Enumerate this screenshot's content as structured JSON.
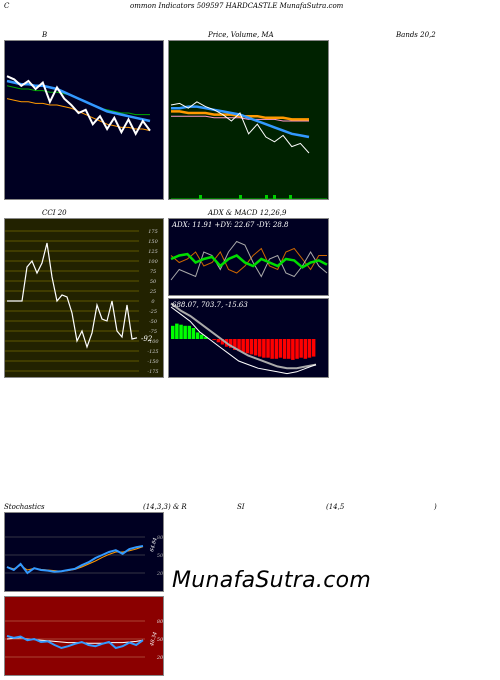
{
  "header": {
    "left": "C",
    "center": "ommon  Indicators 509597 HARDCASTLE MunafaSutra.com"
  },
  "titles": {
    "b": "B",
    "price": "Price,  Volume,  MA",
    "bands": "Bands 20,2",
    "cci": "CCI 20",
    "adx": "ADX  & MACD 12,26,9",
    "stoch_a": "Stochastics",
    "stoch_b": "(14,3,3) & R",
    "rsi_a": "SI",
    "rsi_b": "(14,5",
    "rsi_c": ")"
  },
  "adx": {
    "text": "ADX: 11.91  +DY: 22.67 -DY: 28.8"
  },
  "macd": {
    "text": "688.07,  703.7,  -15.63"
  },
  "cci": {
    "value_label": "-92",
    "ticks": [
      "175",
      "150",
      "125",
      "100",
      "75",
      "50",
      "25",
      "0",
      "-25",
      "-50",
      "-75",
      "-100",
      "-125",
      "-150",
      "-175"
    ]
  },
  "stoch": {
    "ticks": [
      "80",
      "50",
      "20"
    ],
    "value_label": "64.84"
  },
  "rsi": {
    "ticks": [
      "80",
      "50",
      "20"
    ],
    "value_label": "48.34"
  },
  "watermark": "MunafaSutra.com",
  "colors": {
    "panel_dark": "#000022",
    "panel_green": "#002200",
    "panel_cci": "#222200",
    "panel_rsi": "#8b0000",
    "blue": "#3399ff",
    "orange": "#ff9900",
    "green_line": "#00cc00",
    "macd_pos": "#00ff00",
    "macd_neg": "#ff0000"
  },
  "chart_data": [
    {
      "type": "line",
      "name": "bollinger",
      "series": [
        {
          "values": [
            72,
            71,
            70,
            70,
            69,
            69,
            68,
            68,
            67,
            66,
            64,
            62,
            60,
            58,
            57,
            56,
            55,
            55,
            54,
            54,
            54
          ]
        },
        {
          "values": [
            78,
            76,
            72,
            75,
            70,
            74,
            62,
            71,
            64,
            60,
            55,
            57,
            48,
            53,
            45,
            52,
            43,
            51,
            42,
            50,
            44
          ]
        },
        {
          "values": [
            75,
            74,
            73,
            73,
            72,
            72,
            71,
            70,
            68,
            66,
            64,
            62,
            60,
            58,
            56,
            55,
            54,
            53,
            52,
            51,
            50
          ]
        },
        {
          "values": [
            64,
            63,
            62,
            62,
            61,
            61,
            60,
            60,
            59,
            58,
            56,
            54,
            52,
            50,
            48,
            47,
            46,
            46,
            45,
            45,
            44
          ]
        }
      ]
    },
    {
      "type": "line",
      "name": "price",
      "series": [
        {
          "values": [
            60,
            61,
            58,
            62,
            59,
            57,
            54,
            50,
            55,
            42,
            48,
            40,
            37,
            41,
            34,
            36,
            30
          ]
        },
        {
          "values": [
            58,
            58,
            59,
            59,
            58,
            57,
            56,
            55,
            54,
            52,
            50,
            48,
            46,
            44,
            42,
            41,
            40
          ]
        },
        {
          "values": [
            56,
            56,
            55,
            55,
            55,
            54,
            54,
            54,
            53,
            53,
            53,
            52,
            52,
            52,
            51,
            51,
            51
          ]
        },
        {
          "values": [
            53,
            53,
            53,
            53,
            53,
            52,
            52,
            52,
            52,
            51,
            51,
            51,
            51,
            50,
            50,
            50,
            50
          ]
        }
      ]
    },
    {
      "type": "line",
      "name": "cci",
      "values": [
        0,
        0,
        0,
        0,
        85,
        100,
        70,
        95,
        145,
        60,
        0,
        15,
        10,
        -30,
        -100,
        -75,
        -115,
        -80,
        -10,
        -45,
        -50,
        0,
        -75,
        -90,
        -10,
        -95,
        -92
      ],
      "ylim": [
        -175,
        175
      ]
    },
    {
      "type": "line",
      "name": "adx",
      "series": [
        {
          "values": [
            50,
            55,
            57,
            45,
            50,
            53,
            40,
            50,
            55,
            45,
            40,
            50,
            45,
            40,
            50,
            48,
            38,
            45,
            48,
            42
          ]
        },
        {
          "values": [
            20,
            35,
            30,
            25,
            60,
            55,
            35,
            60,
            75,
            70,
            45,
            25,
            50,
            55,
            30,
            25,
            40,
            60,
            40,
            30
          ]
        },
        {
          "values": [
            55,
            45,
            50,
            60,
            40,
            45,
            60,
            35,
            30,
            40,
            55,
            65,
            40,
            35,
            60,
            65,
            50,
            35,
            55,
            55
          ]
        }
      ]
    },
    {
      "type": "bar",
      "name": "macd",
      "values": [
        12,
        14,
        13,
        12,
        12,
        10,
        6,
        4,
        2,
        0,
        -1,
        -3,
        -5,
        -7,
        -8,
        -10,
        -11,
        -12,
        -13,
        -14,
        -15,
        -16,
        -17,
        -17,
        -18,
        -18,
        -17,
        -18,
        -18,
        -19,
        -18,
        -17,
        -18,
        -17,
        -16
      ],
      "lines": [
        {
          "values": [
            720,
            716,
            712,
            706,
            702,
            698,
            694,
            690,
            688,
            686,
            685,
            684,
            683,
            684,
            686,
            688
          ]
        },
        {
          "values": [
            722,
            718,
            715,
            711,
            707,
            703,
            699,
            696,
            693,
            691,
            689,
            687,
            686,
            686,
            687,
            688
          ]
        }
      ]
    },
    {
      "type": "line",
      "name": "stochastics",
      "series": [
        {
          "values": [
            30,
            25,
            35,
            20,
            28,
            25,
            24,
            22,
            23,
            25,
            27,
            33,
            38,
            45,
            50,
            55,
            58,
            52,
            60,
            63,
            65
          ]
        },
        {
          "values": [
            30,
            27,
            33,
            25,
            28,
            26,
            25,
            24,
            23,
            24,
            26,
            30,
            35,
            40,
            46,
            51,
            55,
            55,
            57,
            60,
            64
          ]
        }
      ],
      "ylim": [
        0,
        100
      ]
    },
    {
      "type": "line",
      "name": "rsi",
      "series": [
        {
          "values": [
            55,
            52,
            54,
            48,
            50,
            45,
            46,
            40,
            35,
            38,
            42,
            45,
            40,
            38,
            42,
            45,
            35,
            38,
            44,
            40,
            48
          ]
        },
        {
          "values": [
            50,
            51,
            52,
            50,
            49,
            48,
            47,
            46,
            45,
            44,
            44,
            44,
            43,
            43,
            43,
            44,
            44,
            44,
            45,
            46,
            48
          ]
        }
      ],
      "ylim": [
        0,
        100
      ]
    }
  ]
}
